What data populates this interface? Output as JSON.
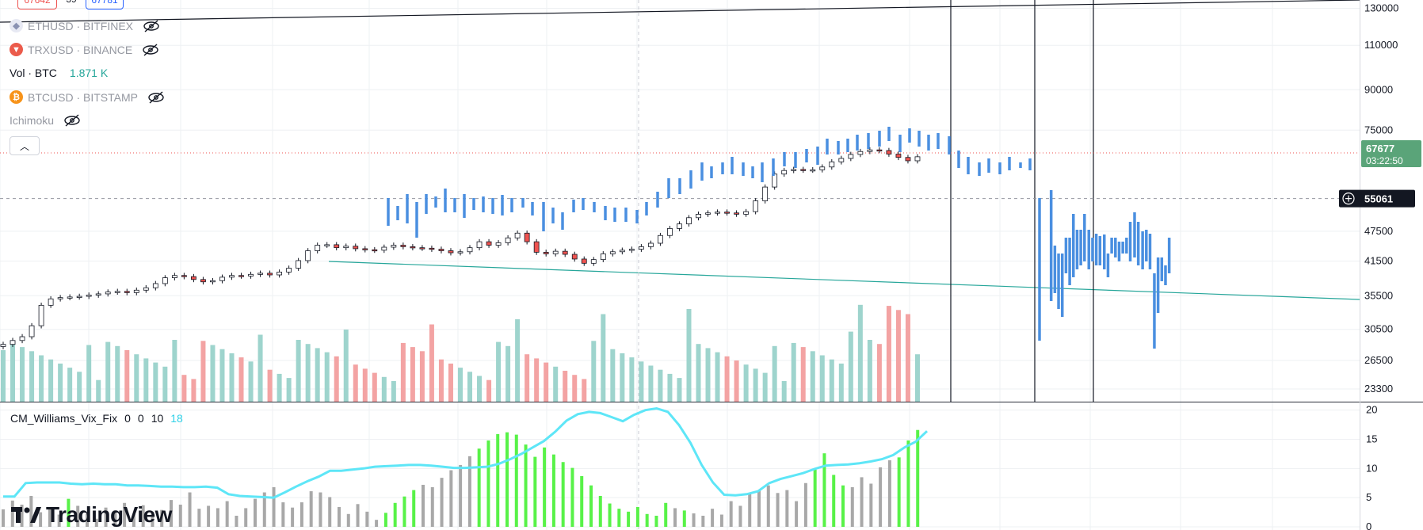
{
  "legend": {
    "eth": {
      "label": "ETHUSD · BITFINEX",
      "icon": "ethereum-icon"
    },
    "trx": {
      "label": "TRXUSD · BINANCE",
      "icon": "tron-icon"
    },
    "vol": {
      "label": "Vol · BTC",
      "value": "1.871 K"
    },
    "btc": {
      "label": "BTCUSD · BITSTAMP",
      "icon": "bitcoin-icon"
    },
    "ichimoku": {
      "label": "Ichimoku"
    }
  },
  "top_pills": {
    "left": "67642",
    "mid": "39",
    "right": "67781"
  },
  "indicator": {
    "name": "CM_Williams_Vix_Fix",
    "p1": "0",
    "p2": "0",
    "p3": "10",
    "p4": "18"
  },
  "price_box": {
    "value": "67677",
    "countdown": "03:22:50",
    "color": "#5aa479"
  },
  "crosshair_box": {
    "value": "55061"
  },
  "watermark": {
    "text": "TradingView"
  },
  "colors": {
    "up": "#26a69a",
    "down": "#ef5350",
    "line": "#4a8fe0",
    "vix_line": "#5ee6f7",
    "vix_green": "#58f248",
    "vix_gray": "#a8a8a8"
  },
  "chart_data": [
    {
      "type": "candlestick",
      "title": "BTCUSD · BITSTAMP",
      "y_ticks": [
        "130000",
        "110000",
        "90000",
        "75000",
        "67677",
        "55061",
        "47500",
        "41500",
        "35500",
        "30500",
        "26500",
        "23300"
      ],
      "ylim": [
        22000,
        135000
      ],
      "scale": "log",
      "close_approx": [
        28500,
        29000,
        29500,
        31000,
        34000,
        35000,
        35200,
        35300,
        35400,
        35600,
        35800,
        36100,
        36200,
        36000,
        36400,
        36800,
        37500,
        38500,
        38900,
        38700,
        38200,
        37800,
        38000,
        38600,
        38900,
        38800,
        39100,
        39300,
        39000,
        39500,
        40200,
        41600,
        43500,
        44600,
        44700,
        44100,
        44400,
        43900,
        43700,
        43600,
        44200,
        44600,
        44300,
        44100,
        44000,
        43800,
        43500,
        43100,
        43300,
        44100,
        45300,
        44600,
        45100,
        46100,
        47100,
        45300,
        43200,
        42900,
        43400,
        42800,
        41900,
        41100,
        41800,
        42900,
        43300,
        43600,
        43800,
        44300,
        45000,
        46600,
        48100,
        49100,
        50500,
        51300,
        51600,
        51800,
        51600,
        51300,
        51900,
        54500,
        58000,
        61500,
        62500,
        62800,
        62600,
        62700,
        63500,
        65000,
        66000,
        67200,
        68100,
        68600,
        68400,
        67300,
        66300,
        65300,
        66500
      ],
      "grid": true
    },
    {
      "type": "line",
      "title": "ETHUSD · BITFINEX / TRXUSD · BINANCE (compare)",
      "note": "blue OHLC bars series",
      "grid": true
    },
    {
      "type": "bar",
      "title": "Vol · BTC",
      "last_value": "1.871 K"
    },
    {
      "type": "bar",
      "title": "CM_Williams_Vix_Fix",
      "y_ticks": [
        "20",
        "15",
        "10",
        "5",
        "0"
      ],
      "ylim": [
        0,
        20.5
      ],
      "values": [
        3.0,
        4.5,
        3.8,
        5.3,
        2.5,
        3.2,
        2.1,
        4.8,
        3.6,
        2.2,
        1.4,
        3.3,
        2.8,
        4.1,
        2.2,
        3.7,
        2.6,
        2.9,
        4.6,
        3.8,
        5.9,
        3.1,
        3.6,
        3.2,
        4.4,
        1.9,
        3.2,
        4.8,
        5.9,
        6.8,
        4.2,
        3.3,
        4.2,
        6.1,
        5.9,
        5.1,
        3.4,
        2.2,
        3.9,
        2.6,
        1.2,
        2.4,
        4.1,
        5.2,
        6.3,
        7.2,
        6.8,
        8.4,
        9.7,
        10.6,
        12.1,
        13.4,
        14.8,
        15.9,
        16.2,
        15.8,
        14.1,
        12.0,
        13.6,
        12.4,
        11.1,
        10.1,
        8.7,
        7.1,
        5.3,
        4.0,
        3.1,
        2.6,
        3.4,
        2.2,
        1.9,
        4.1,
        3.2,
        2.8,
        2.3,
        1.9,
        3.1,
        2.1,
        4.4,
        3.6,
        5.6,
        6.2,
        7.1,
        5.8,
        6.3,
        4.4,
        7.5,
        9.8,
        12.6,
        8.9,
        7.1,
        6.8,
        8.5,
        7.4,
        10.2,
        11.4,
        11.9,
        14.8,
        16.6
      ],
      "green_highlight_indices": [
        7,
        41,
        42,
        43,
        44,
        51,
        52,
        53,
        54,
        55,
        56,
        57,
        58,
        59,
        60,
        61,
        62,
        63,
        64,
        65,
        66,
        67,
        68,
        69,
        70,
        71,
        73,
        87,
        88,
        89,
        90,
        96,
        97,
        98
      ],
      "line_values": [
        5.2,
        5.2,
        7.5,
        7.6,
        7.6,
        7.6,
        7.4,
        7.3,
        7.4,
        7.3,
        7.3,
        7.1,
        7.1,
        7.0,
        6.9,
        6.9,
        6.8,
        6.8,
        6.9,
        6.7,
        5.6,
        5.3,
        5.2,
        5.1,
        5.0,
        5.9,
        6.9,
        7.8,
        8.6,
        9.6,
        9.6,
        9.8,
        10.0,
        10.3,
        10.4,
        10.5,
        10.6,
        10.6,
        10.5,
        10.3,
        10.1,
        10.1,
        10.2,
        10.3,
        10.8,
        11.6,
        12.5,
        13.6,
        14.7,
        16.3,
        18.2,
        19.3,
        19.7,
        19.5,
        18.8,
        18.1,
        19.2,
        20.0,
        20.3,
        19.7,
        17.4,
        14.4,
        10.6,
        7.6,
        5.5,
        5.4,
        5.6,
        6.1,
        7.5,
        8.2,
        8.7,
        9.2,
        9.9,
        10.5,
        10.6,
        10.7,
        10.9,
        11.2,
        11.6,
        12.3,
        13.6,
        14.6,
        16.4
      ]
    }
  ]
}
